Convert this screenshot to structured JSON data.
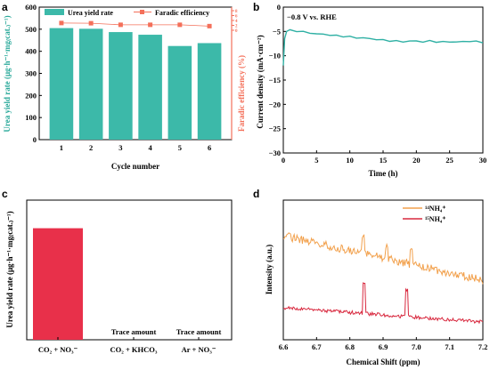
{
  "chart_data": [
    {
      "panel": "a",
      "type": "bar",
      "categories": [
        "1",
        "2",
        "3",
        "4",
        "5",
        "6"
      ],
      "xlabel": "Cycle number",
      "ylabel": "Urea yield rate (μg·h⁻¹·mg₍cat.₎⁻¹)",
      "ylabel_right": "Faradic efficiency (%)",
      "ylim": [
        0,
        600
      ],
      "yticks": [
        0,
        100,
        200,
        300,
        400,
        500,
        600
      ],
      "series": [
        {
          "name": "Urea yield rate",
          "kind": "bar",
          "values": [
            505,
            502,
            487,
            475,
            424,
            437
          ],
          "color": "#3cb9a9"
        },
        {
          "name": "Faradic efficiency",
          "kind": "line-markers",
          "values": [
            528,
            527,
            520,
            520,
            520,
            514
          ],
          "color": "#f4705a"
        }
      ],
      "right_tick_labels": [
        "8",
        "6",
        "4",
        "2",
        "0"
      ],
      "right_color": "#f4705a"
    },
    {
      "panel": "b",
      "type": "line",
      "xlabel": "Time (h)",
      "ylabel": "Current density (mA·cm⁻²)",
      "xlim": [
        0,
        30
      ],
      "ylim": [
        -30,
        0
      ],
      "xticks": [
        0,
        5,
        10,
        15,
        20,
        25,
        30
      ],
      "yticks": [
        0,
        -5,
        -10,
        -15,
        -20,
        -25,
        -30
      ],
      "annotation": "−0.8 V vs. RHE",
      "series": [
        {
          "color": "#2fb0a4",
          "x": [
            0,
            0.2,
            0.5,
            1,
            2,
            3,
            4,
            5,
            6,
            7,
            8,
            9,
            10,
            11,
            12,
            13,
            14,
            15,
            16,
            17,
            18,
            19,
            20,
            21,
            22,
            23,
            24,
            25,
            26,
            27,
            28,
            29,
            30
          ],
          "y": [
            -12.0,
            -6.5,
            -5.0,
            -4.8,
            -4.9,
            -5.1,
            -5.3,
            -5.5,
            -5.6,
            -5.7,
            -5.9,
            -6.0,
            -6.1,
            -6.3,
            -6.3,
            -6.5,
            -6.6,
            -6.8,
            -6.9,
            -7.0,
            -7.1,
            -7.0,
            -7.0,
            -7.1,
            -7.0,
            -7.1,
            -7.2,
            -7.1,
            -7.2,
            -7.1,
            -7.0,
            -7.1,
            -7.2
          ]
        }
      ]
    },
    {
      "panel": "c",
      "type": "bar",
      "categories": [
        "CO₂ + NO₃⁻",
        "CO₂ + KHCO₃",
        "Ar + NO₃⁻"
      ],
      "ylabel": "Urea yield rate (μg·h⁻¹·mg₍cat.₎⁻¹)",
      "values": [
        505,
        0,
        0
      ],
      "ylim": [
        0,
        600
      ],
      "color": "#e8304a",
      "annotations": [
        "Trace amount",
        "Trace amount"
      ]
    },
    {
      "panel": "d",
      "type": "line",
      "xlabel": "Chemical Shift (ppm)",
      "ylabel": "Intensity (a.u.)",
      "xlim": [
        6.6,
        7.2
      ],
      "xticks": [
        6.6,
        6.7,
        6.8,
        6.9,
        7.0,
        7.1,
        7.2
      ],
      "series": [
        {
          "name": "¹⁴NH₄⁺",
          "color": "#f2a14d"
        },
        {
          "name": "¹⁵NH₄⁺",
          "color": "#d8283e"
        }
      ]
    }
  ]
}
